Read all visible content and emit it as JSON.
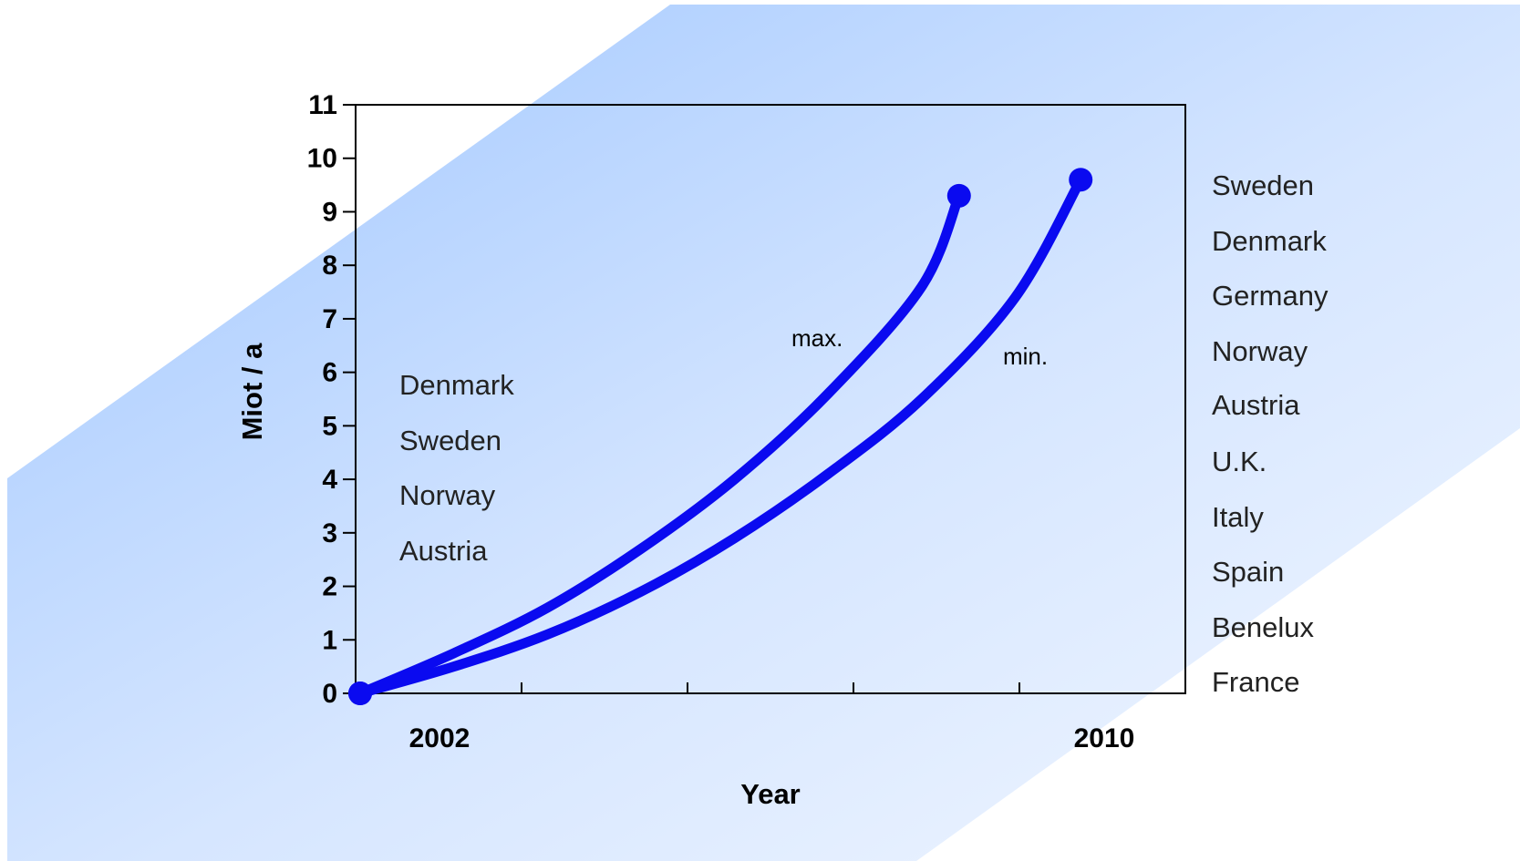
{
  "colors": {
    "series": "#0a0af0",
    "axis": "#000000",
    "background_gradient": [
      "#a8ccff",
      "#e6f0ff"
    ]
  },
  "chart_data": {
    "type": "line",
    "title": "",
    "xlabel": "Year",
    "ylabel": "Miot / a",
    "x_tick_labels": [
      "2002",
      "2010"
    ],
    "xlim": [
      2002,
      2010
    ],
    "ylim": [
      0,
      11
    ],
    "y_ticks": [
      0,
      1,
      2,
      3,
      4,
      5,
      6,
      7,
      8,
      9,
      10,
      11
    ],
    "grid": false,
    "series": [
      {
        "name": "max.",
        "x": [
          2002,
          2003,
          2004,
          2005,
          2006,
          2007,
          2008,
          2008.4
        ],
        "y": [
          0,
          0.75,
          1.6,
          2.7,
          4.0,
          5.6,
          7.6,
          9.3
        ]
      },
      {
        "name": "min.",
        "x": [
          2002,
          2003,
          2004,
          2005,
          2006,
          2007,
          2008,
          2009,
          2009.7
        ],
        "y": [
          0,
          0.5,
          1.1,
          1.9,
          2.9,
          4.1,
          5.5,
          7.4,
          9.6
        ]
      }
    ],
    "annotations": {
      "start_countries": [
        "Denmark",
        "Sweden",
        "Norway",
        "Austria"
      ],
      "end_countries": [
        "Sweden",
        "Denmark",
        "Germany",
        "Norway",
        "Austria",
        "U.K.",
        "Italy",
        "Spain",
        "Benelux",
        "France"
      ]
    }
  }
}
